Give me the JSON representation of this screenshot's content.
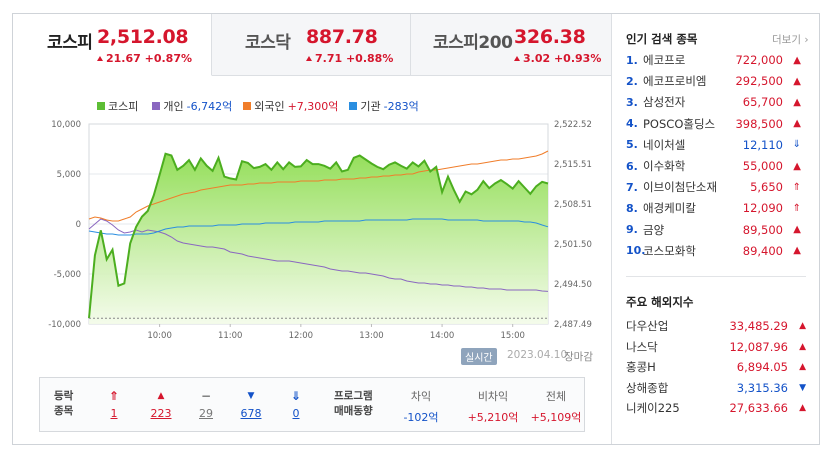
{
  "tabs": [
    {
      "name": "코스피",
      "value": "2,512.08",
      "change": "21.67 +0.87%"
    },
    {
      "name": "코스닥",
      "value": "887.78",
      "change": "7.71 +0.88%"
    },
    {
      "name": "코스피200",
      "value": "326.38",
      "change": "3.02 +0.93%"
    }
  ],
  "legend": [
    {
      "name": "코스피",
      "value": "",
      "color": "#5dbe35"
    },
    {
      "name": "개인",
      "value": "-6,742억",
      "color": "#8a67c0"
    },
    {
      "name": "외국인",
      "value": "+7,300억",
      "color": "#f07d2a"
    },
    {
      "name": "기관",
      "value": "-283억",
      "color": "#2a8ee0"
    }
  ],
  "chart": {
    "left_ticks": [
      "10,000",
      "5,000",
      "0",
      "-5,000",
      "-10,000"
    ],
    "right_ticks": [
      "2,522.52",
      "2,515.51",
      "2,508.51",
      "2,501.50",
      "2,494.50",
      "2,487.49"
    ],
    "x_ticks": [
      "10:00",
      "11:00",
      "12:00",
      "13:00",
      "14:00",
      "15:00"
    ],
    "live_label": "실시간",
    "date": "2023.04.10",
    "closed_label": "장마감"
  },
  "chart_data": {
    "type": "line",
    "x": [
      "09:00",
      "09:05",
      "09:10",
      "09:15",
      "09:20",
      "09:25",
      "09:30",
      "09:35",
      "09:40",
      "09:45",
      "09:50",
      "09:55",
      "10:00",
      "10:05",
      "10:10",
      "10:15",
      "10:20",
      "10:25",
      "10:30",
      "10:35",
      "10:40",
      "10:45",
      "10:50",
      "10:55",
      "11:00",
      "11:05",
      "11:10",
      "11:15",
      "11:20",
      "11:25",
      "11:30",
      "11:35",
      "11:40",
      "11:45",
      "11:50",
      "11:55",
      "12:00",
      "12:05",
      "12:10",
      "12:15",
      "12:20",
      "12:25",
      "12:30",
      "12:35",
      "12:40",
      "12:45",
      "12:50",
      "12:55",
      "13:00",
      "13:05",
      "13:10",
      "13:15",
      "13:20",
      "13:25",
      "13:30",
      "13:35",
      "13:40",
      "13:45",
      "13:50",
      "13:55",
      "14:00",
      "14:05",
      "14:10",
      "14:15",
      "14:20",
      "14:25",
      "14:30",
      "14:35",
      "14:40",
      "14:45",
      "14:50",
      "14:55",
      "15:00",
      "15:05",
      "15:10",
      "15:15",
      "15:20",
      "15:25",
      "15:30"
    ],
    "y_left_label": "",
    "y_left_range": [
      -10000,
      10000
    ],
    "y_right_range": [
      2487.49,
      2522.52
    ],
    "series": [
      {
        "name": "코스피",
        "axis": "right",
        "values": [
          2488.5,
          2499.5,
          2503.9,
          2498.8,
          2500.5,
          2494.2,
          2494.6,
          2501.6,
          2504.5,
          2506.3,
          2507.3,
          2510.0,
          2513.6,
          2517.3,
          2517.0,
          2514.5,
          2515.2,
          2516.2,
          2514.5,
          2516.5,
          2515.2,
          2514.3,
          2516.6,
          2513.3,
          2513.0,
          2512.8,
          2516.0,
          2515.7,
          2514.8,
          2515.0,
          2515.5,
          2514.5,
          2515.8,
          2514.6,
          2515.8,
          2515.0,
          2515.1,
          2516.2,
          2515.5,
          2515.5,
          2515.2,
          2514.7,
          2515.8,
          2514.2,
          2514.5,
          2516.6,
          2517.0,
          2516.3,
          2515.6,
          2515.0,
          2514.6,
          2515.4,
          2515.8,
          2515.2,
          2514.7,
          2515.8,
          2515.1,
          2516.1,
          2514.2,
          2515.0,
          2510.6,
          2513.3,
          2511.0,
          2508.9,
          2510.7,
          2510.2,
          2511.0,
          2512.5,
          2511.3,
          2512.1,
          2512.7,
          2512.0,
          2511.2,
          2512.5,
          2511.4,
          2510.3,
          2511.6,
          2512.4,
          2512.1
        ]
      },
      {
        "name": "개인",
        "axis": "left",
        "values": [
          -500,
          -1,
          500,
          300,
          -100,
          -600,
          -900,
          -800,
          -600,
          -800,
          -600,
          -700,
          -800,
          -1000,
          -1300,
          -1700,
          -1900,
          -2000,
          -2100,
          -2200,
          -2300,
          -2300,
          -2400,
          -2500,
          -2800,
          -2900,
          -3000,
          -3200,
          -3300,
          -3400,
          -3500,
          -3600,
          -3700,
          -3700,
          -3700,
          -3800,
          -3900,
          -4000,
          -4100,
          -4200,
          -4300,
          -4500,
          -4600,
          -4700,
          -4700,
          -4800,
          -4900,
          -4900,
          -5000,
          -5100,
          -5200,
          -5400,
          -5500,
          -5500,
          -5700,
          -5800,
          -5900,
          -5900,
          -6000,
          -6000,
          -6100,
          -6100,
          -6200,
          -6200,
          -6300,
          -6300,
          -6400,
          -6400,
          -6500,
          -6500,
          -6500,
          -6600,
          -6600,
          -6600,
          -6600,
          -6600,
          -6600,
          -6700,
          -6742
        ]
      },
      {
        "name": "외국인",
        "axis": "left",
        "values": [
          500,
          700,
          600,
          400,
          300,
          300,
          500,
          700,
          1200,
          1500,
          1800,
          2000,
          2200,
          2400,
          2600,
          2800,
          3000,
          3100,
          3200,
          3400,
          3500,
          3600,
          3700,
          3800,
          3900,
          3900,
          3900,
          4000,
          4000,
          4100,
          4100,
          4100,
          4200,
          4200,
          4200,
          4200,
          4300,
          4300,
          4300,
          4300,
          4400,
          4400,
          4400,
          4500,
          4500,
          4500,
          4600,
          4600,
          4700,
          4700,
          4800,
          4800,
          4900,
          4900,
          5000,
          5000,
          5200,
          5300,
          5400,
          5400,
          5500,
          5600,
          5700,
          5800,
          5900,
          6000,
          6000,
          6100,
          6200,
          6300,
          6400,
          6400,
          6500,
          6500,
          6600,
          6700,
          6800,
          7000,
          7300
        ]
      },
      {
        "name": "기관",
        "axis": "left",
        "values": [
          -700,
          -800,
          -900,
          -1000,
          -1000,
          -1100,
          -1100,
          -1100,
          -1000,
          -1000,
          -1000,
          -900,
          -700,
          -500,
          -400,
          -300,
          -300,
          -200,
          -200,
          -200,
          -200,
          -200,
          -100,
          -100,
          -100,
          -100,
          0,
          0,
          0,
          0,
          100,
          100,
          100,
          100,
          100,
          200,
          200,
          200,
          200,
          200,
          300,
          300,
          300,
          300,
          300,
          300,
          300,
          400,
          400,
          400,
          400,
          400,
          400,
          400,
          400,
          500,
          500,
          500,
          500,
          500,
          500,
          400,
          400,
          400,
          400,
          400,
          400,
          300,
          300,
          300,
          300,
          300,
          300,
          300,
          200,
          200,
          100,
          -100,
          -283
        ]
      }
    ]
  },
  "breadth": {
    "header_top": "등락",
    "header_bottom": "종목",
    "items": [
      {
        "icon": "⇑",
        "value": "1",
        "cls": "red"
      },
      {
        "icon": "▲",
        "value": "223",
        "cls": "red"
      },
      {
        "icon": "−",
        "value": "29",
        "cls": "gray"
      },
      {
        "icon": "▼",
        "value": "678",
        "cls": "blue"
      },
      {
        "icon": "⇓",
        "value": "0",
        "cls": "blue"
      }
    ],
    "program_top": "프로그램",
    "program_bottom": "매매동향",
    "program": [
      {
        "label": "차익",
        "value": "-102억",
        "cls": "blue"
      },
      {
        "label": "비차익",
        "value": "+5,210억",
        "cls": "red"
      },
      {
        "label": "전체",
        "value": "+5,109억",
        "cls": "red"
      }
    ]
  },
  "sidebar": {
    "popular_title": "인기 검색 종목",
    "more_label": "더보기",
    "popular": [
      {
        "rank": "1.",
        "name": "에코프로",
        "price": "722,000",
        "arrow": "▲",
        "dir": "up"
      },
      {
        "rank": "2.",
        "name": "에코프로비엠",
        "price": "292,500",
        "arrow": "▲",
        "dir": "up"
      },
      {
        "rank": "3.",
        "name": "삼성전자",
        "price": "65,700",
        "arrow": "▲",
        "dir": "up"
      },
      {
        "rank": "4.",
        "name": "POSCO홀딩스",
        "price": "398,500",
        "arrow": "▲",
        "dir": "up"
      },
      {
        "rank": "5.",
        "name": "네이처셀",
        "price": "12,110",
        "arrow": "⇓",
        "dir": "down"
      },
      {
        "rank": "6.",
        "name": "이수화학",
        "price": "55,000",
        "arrow": "▲",
        "dir": "up"
      },
      {
        "rank": "7.",
        "name": "이브이첨단소재",
        "price": "5,650",
        "arrow": "⇑",
        "dir": "up"
      },
      {
        "rank": "8.",
        "name": "애경케미칼",
        "price": "12,090",
        "arrow": "⇑",
        "dir": "up"
      },
      {
        "rank": "9.",
        "name": "금양",
        "price": "89,500",
        "arrow": "▲",
        "dir": "up"
      },
      {
        "rank": "10.",
        "name": "코스모화학",
        "price": "89,400",
        "arrow": "▲",
        "dir": "up"
      }
    ],
    "indices_title": "주요 해외지수",
    "indices": [
      {
        "name": "다우산업",
        "value": "33,485.29",
        "arrow": "▲",
        "dir": "up"
      },
      {
        "name": "나스닥",
        "value": "12,087.96",
        "arrow": "▲",
        "dir": "up"
      },
      {
        "name": "홍콩H",
        "value": "6,894.05",
        "arrow": "▲",
        "dir": "up"
      },
      {
        "name": "상해종합",
        "value": "3,315.36",
        "arrow": "▼",
        "dir": "down"
      },
      {
        "name": "니케이225",
        "value": "27,633.66",
        "arrow": "▲",
        "dir": "up"
      }
    ]
  }
}
